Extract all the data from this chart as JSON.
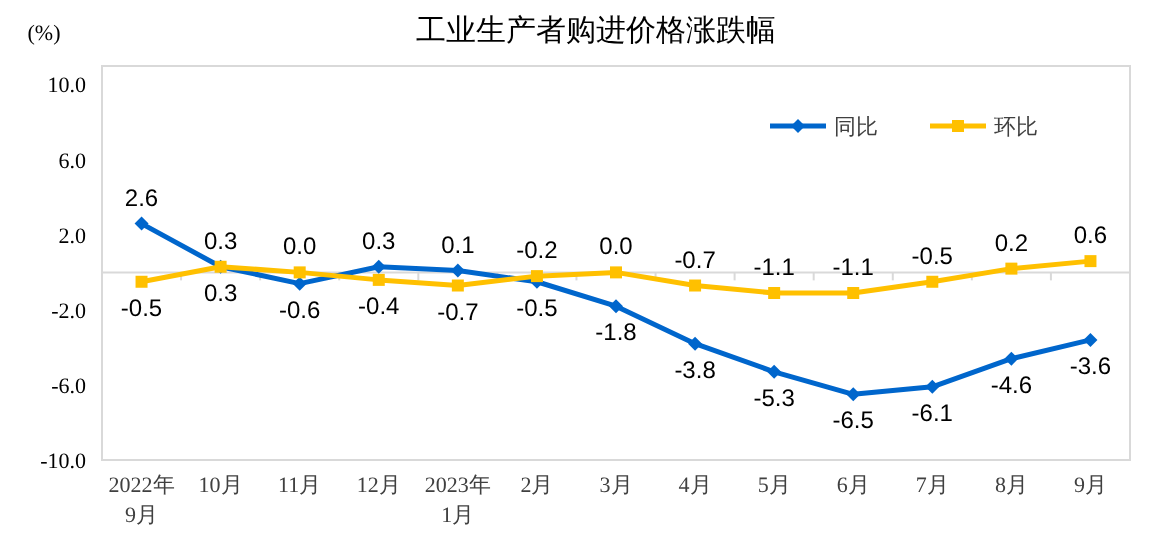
{
  "chart_data": {
    "type": "line",
    "title": "工业生产者购进价格涨跌幅",
    "ylabel": "(%)",
    "categories": [
      "2022年\n9月",
      "10月",
      "11月",
      "12月",
      "2023年\n1月",
      "2月",
      "3月",
      "4月",
      "5月",
      "6月",
      "7月",
      "8月",
      "9月"
    ],
    "series": [
      {
        "name": "同比",
        "color": "#0066cc",
        "marker": "diamond",
        "values": [
          2.6,
          0.3,
          -0.6,
          0.3,
          0.1,
          -0.5,
          -1.8,
          -3.8,
          -5.3,
          -6.5,
          -6.1,
          -4.6,
          -3.6
        ],
        "value_labels": [
          "2.6",
          "0.3",
          "-0.6",
          "0.3",
          "0.1",
          "-0.5",
          "-1.8",
          "-3.8",
          "-5.3",
          "-6.5",
          "-6.1",
          "-4.6",
          "-3.6"
        ]
      },
      {
        "name": "环比",
        "color": "#ffc000",
        "marker": "square",
        "values": [
          -0.5,
          0.3,
          0.0,
          -0.4,
          -0.7,
          -0.2,
          0.0,
          -0.7,
          -1.1,
          -1.1,
          -0.5,
          0.2,
          0.6
        ],
        "value_labels": [
          "-0.5",
          "0.3",
          "0.0",
          "-0.4",
          "-0.7",
          "-0.2",
          "0.0",
          "-0.7",
          "-1.1",
          "-1.1",
          "-0.5",
          "0.2",
          "0.6"
        ]
      }
    ],
    "ylim": [
      -10,
      11
    ],
    "yticks": [
      {
        "value": -10,
        "label": "-10.0"
      },
      {
        "value": -6,
        "label": "-6.0"
      },
      {
        "value": -2,
        "label": "-2.0"
      },
      {
        "value": 2,
        "label": "2.0"
      },
      {
        "value": 6,
        "label": "6.0"
      },
      {
        "value": 10,
        "label": "10.0"
      }
    ],
    "grid": false,
    "legend": "top right",
    "line_style": "solid"
  }
}
